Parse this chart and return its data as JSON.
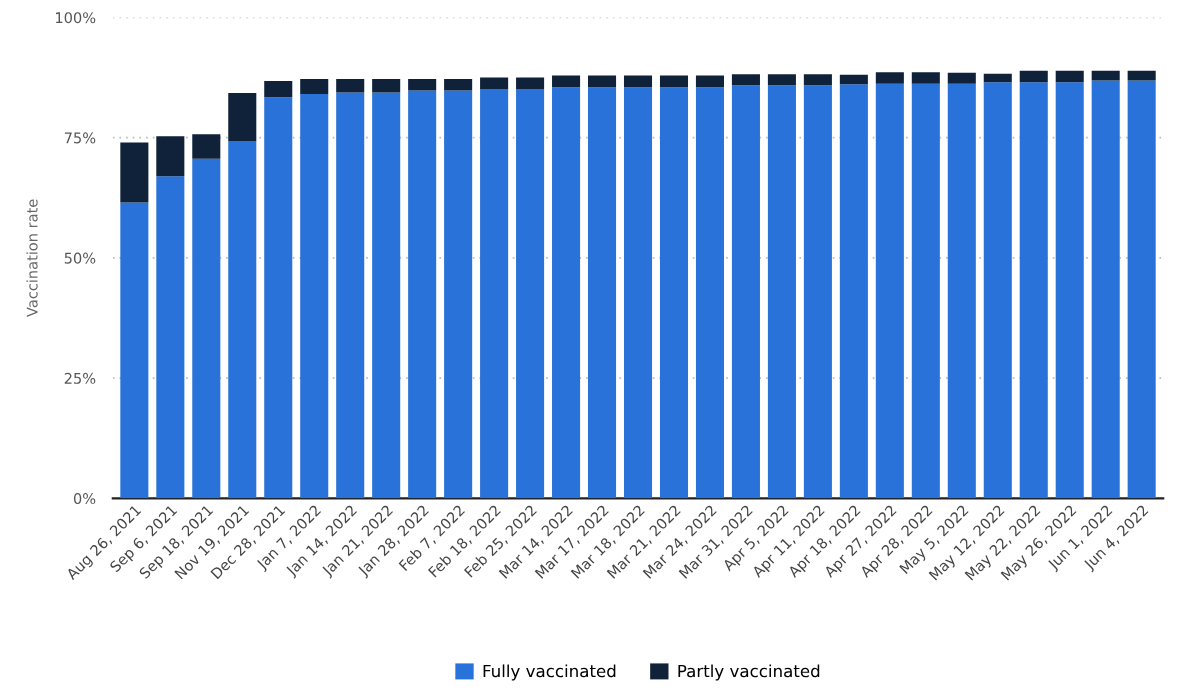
{
  "chart_data": {
    "type": "bar",
    "stacked": true,
    "ylabel": "Vaccination rate",
    "categories": [
      "Aug 26, 2021",
      "Sep 6, 2021",
      "Sep 18, 2021",
      "Nov 19, 2021",
      "Dec 28, 2021",
      "Jan 7, 2022",
      "Jan 14, 2022",
      "Jan 21, 2022",
      "Jan 28, 2022",
      "Feb 7, 2022",
      "Feb 18, 2022",
      "Feb 25, 2022",
      "Mar 14, 2022",
      "Mar 17, 2022",
      "Mar 18, 2022",
      "Mar 21, 2022",
      "Mar 24, 2022",
      "Mar 31, 2022",
      "Apr 5, 2022",
      "Apr 11, 2022",
      "Apr 18, 2022",
      "Apr 27, 2022",
      "Apr 28, 2022",
      "May 5, 2022",
      "May 12, 2022",
      "May 22, 2022",
      "May 26, 2022",
      "Jun 1, 2022",
      "Jun 4, 2022"
    ],
    "series": [
      {
        "name": "Fully vaccinated",
        "color": "#2872d9",
        "values": [
          61.5,
          67.0,
          70.6,
          74.2,
          83.4,
          84.1,
          84.4,
          84.4,
          84.8,
          84.8,
          85.1,
          85.1,
          85.5,
          85.5,
          85.5,
          85.5,
          85.5,
          85.9,
          85.9,
          85.9,
          86.1,
          86.2,
          86.2,
          86.2,
          86.5,
          86.5,
          86.5,
          86.9,
          86.9
        ]
      },
      {
        "name": "Partly vaccinated",
        "color": "#0f2239",
        "values": [
          12.5,
          8.3,
          5.1,
          10.1,
          3.4,
          3.1,
          2.8,
          2.8,
          2.4,
          2.4,
          2.4,
          2.4,
          2.4,
          2.4,
          2.4,
          2.4,
          2.4,
          2.3,
          2.3,
          2.3,
          2.0,
          2.4,
          2.4,
          2.3,
          1.8,
          2.4,
          2.4,
          2.0,
          2.0
        ]
      }
    ],
    "ylim": [
      0,
      100
    ],
    "yticks": [
      {
        "value": 0,
        "label": "0%"
      },
      {
        "value": 25,
        "label": "25%"
      },
      {
        "value": 50,
        "label": "50%"
      },
      {
        "value": 75,
        "label": "75%"
      },
      {
        "value": 100,
        "label": "100%"
      }
    ],
    "grid": "y",
    "legend": "bottom"
  }
}
